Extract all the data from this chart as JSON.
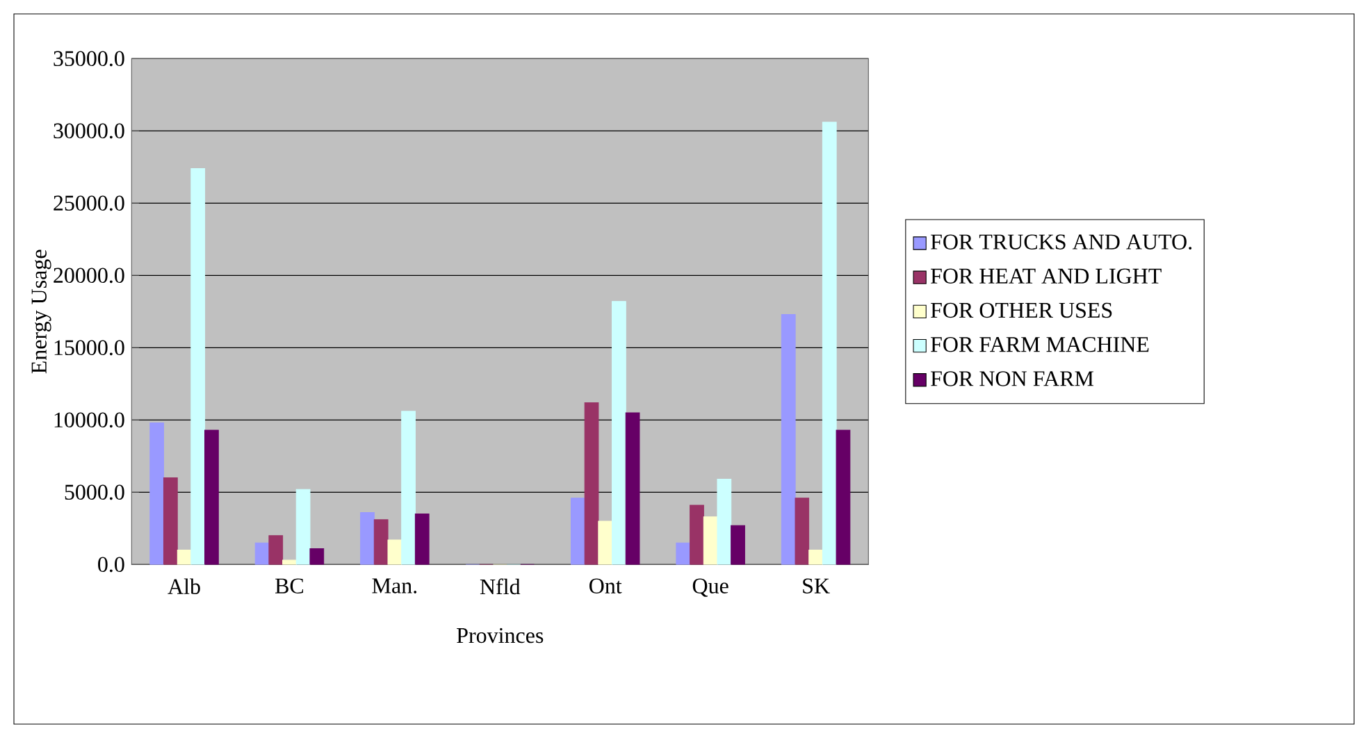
{
  "chart_data": {
    "type": "bar",
    "xlabel": "Provinces",
    "ylabel": "Energy Usage",
    "categories": [
      "Alb",
      "BC",
      "Man.",
      "Nfld",
      "Ont",
      "Que",
      "SK"
    ],
    "series": [
      {
        "name": "FOR TRUCKS AND AUTO.",
        "color": "#9999ff",
        "values": [
          9800,
          1500,
          3600,
          0,
          4600,
          1500,
          17300
        ]
      },
      {
        "name": "FOR HEAT AND LIGHT",
        "color": "#993366",
        "values": [
          6000,
          2000,
          3100,
          0,
          11200,
          4100,
          4600
        ]
      },
      {
        "name": "FOR OTHER USES",
        "color": "#ffffcc",
        "values": [
          1000,
          300,
          1700,
          0,
          3000,
          3300,
          1000
        ]
      },
      {
        "name": "FOR FARM MACHINE",
        "color": "#ccffff",
        "values": [
          27400,
          5200,
          10600,
          0,
          18200,
          5900,
          30600
        ]
      },
      {
        "name": "FOR NON FARM",
        "color": "#660066",
        "values": [
          9300,
          1100,
          3500,
          0,
          10500,
          2700,
          9300
        ]
      }
    ],
    "ylim": [
      0,
      35000
    ],
    "yticks": [
      {
        "value": 0,
        "label": "0.0"
      },
      {
        "value": 5000,
        "label": "5000.0"
      },
      {
        "value": 10000,
        "label": "10000.0"
      },
      {
        "value": 15000,
        "label": "15000.0"
      },
      {
        "value": 20000,
        "label": "20000.0"
      },
      {
        "value": 25000,
        "label": "25000.0"
      },
      {
        "value": 30000,
        "label": "30000.0"
      },
      {
        "value": 35000,
        "label": "35000.0"
      }
    ],
    "grid": "y",
    "legend": "right"
  }
}
